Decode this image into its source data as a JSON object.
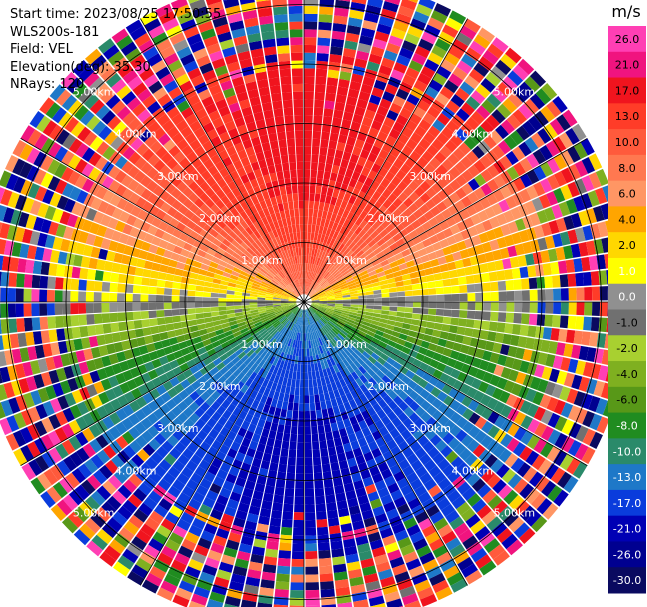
{
  "header": {
    "start_time": "Start time: 2023/08/25 17:50:55",
    "station": "WLS200s-181",
    "field": "Field: VEL",
    "elevation": "Elevation(deg): 35.30",
    "nrays": "NRays: 120"
  },
  "chart_data": {
    "type": "heatmap",
    "projection": "polar-ppi",
    "title": "",
    "field": "VEL",
    "units": "m/s",
    "nrays": 120,
    "range_rings_km": [
      1.0,
      2.0,
      3.0,
      4.0,
      5.0
    ],
    "ring_labels": [
      "1.00km",
      "2.00km",
      "3.00km",
      "4.00km",
      "5.00km"
    ],
    "max_range_km": 5.5,
    "noise_beyond_km": 4.2,
    "velocity_pattern": {
      "toward_azimuth_deg": 0,
      "max_speed_ms": 18.5,
      "note_azimuth_range_deg": [
        0,
        360
      ]
    },
    "colorbar": {
      "label": "m/s",
      "ticks": [
        "26.0",
        "21.0",
        "17.0",
        "13.0",
        "10.0",
        "8.0",
        "6.0",
        "4.0",
        "2.0",
        "1.0",
        "0.0",
        "-1.0",
        "-2.0",
        "-4.0",
        "-6.0",
        "-8.0",
        "-10.0",
        "-13.0",
        "-17.0",
        "-21.0",
        "-26.0",
        "-30.0"
      ],
      "levels": [
        30,
        26,
        21,
        17,
        13,
        10,
        8,
        6,
        4,
        2,
        1,
        0,
        -1,
        -2,
        -4,
        -6,
        -8,
        -10,
        -13,
        -17,
        -21,
        -26,
        -30
      ],
      "colors": [
        "#ff3fb4",
        "#f0147f",
        "#f0141e",
        "#ff3c28",
        "#ff5a3c",
        "#ff7850",
        "#ff9664",
        "#ffa500",
        "#ffd700",
        "#ffff00",
        "#909090",
        "#707070",
        "#a8d030",
        "#7fb020",
        "#589818",
        "#208c20",
        "#2a8a6a",
        "#1e78c8",
        "#0a3cdc",
        "#0000b4",
        "#000090",
        "#0a0a60"
      ]
    }
  }
}
